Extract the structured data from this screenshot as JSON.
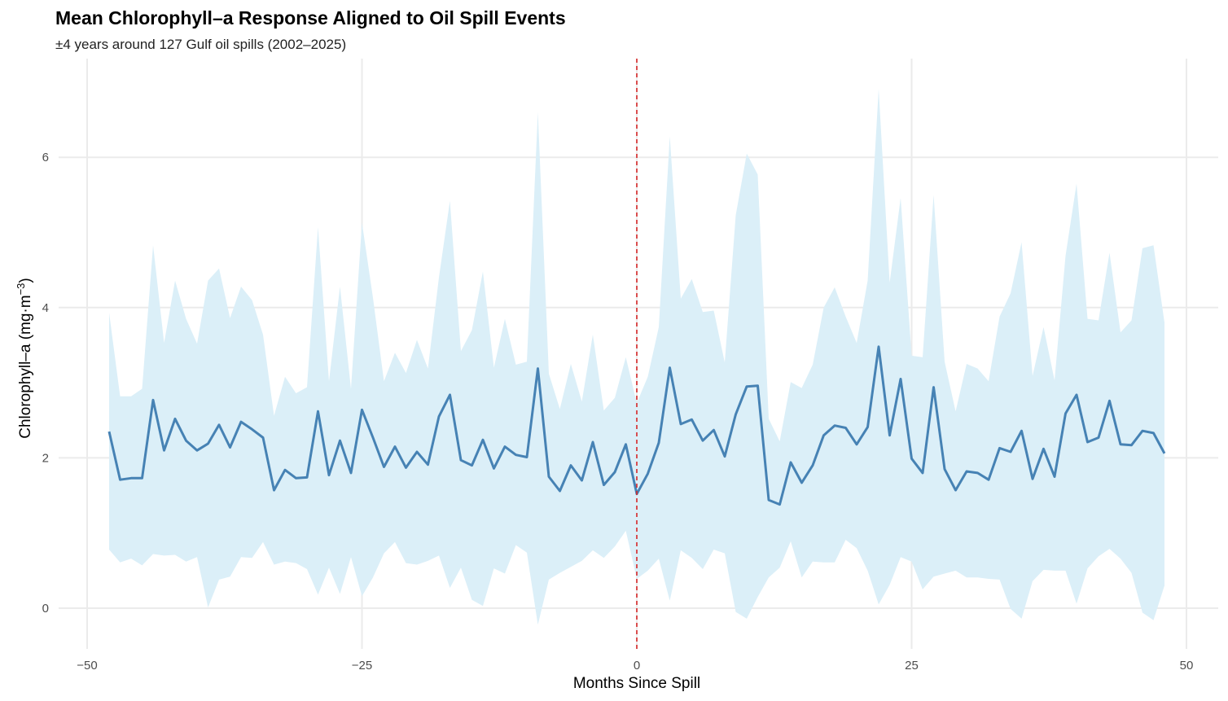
{
  "chart_data": {
    "type": "line",
    "title": "Mean Chlorophyll–a Response Aligned to Oil Spill Events",
    "subtitle": "±4 years around 127 Gulf oil spills (2002–2025)",
    "xlabel": "Months Since Spill",
    "ylabel_main": "Chlorophyll–a (mg·m",
    "ylabel_sup": "−3",
    "ylabel_close": ")",
    "xlim": [
      -50,
      50
    ],
    "ylim": [
      -0.5,
      7.3
    ],
    "x_ticks": [
      -50,
      -25,
      0,
      25,
      50
    ],
    "x_tick_labels": [
      "−50",
      "−25",
      "0",
      "25",
      "50"
    ],
    "y_ticks": [
      0,
      2,
      4,
      6
    ],
    "y_tick_labels": [
      "0",
      "2",
      "4",
      "6"
    ],
    "grid": true,
    "event_marker": {
      "x": 0,
      "style": "dashed",
      "color": "#d62728"
    },
    "colors": {
      "line": "#4682b4",
      "band": "#dbeff8",
      "grid": "#ebebeb",
      "event": "#d62728"
    },
    "x": [
      -48,
      -47,
      -46,
      -45,
      -44,
      -43,
      -42,
      -41,
      -40,
      -39,
      -38,
      -37,
      -36,
      -35,
      -34,
      -33,
      -32,
      -31,
      -30,
      -29,
      -28,
      -27,
      -26,
      -25,
      -24,
      -23,
      -22,
      -21,
      -20,
      -19,
      -18,
      -17,
      -16,
      -15,
      -14,
      -13,
      -12,
      -11,
      -10,
      -9,
      -8,
      -7,
      -6,
      -5,
      -4,
      -3,
      -2,
      -1,
      0,
      1,
      2,
      3,
      4,
      5,
      6,
      7,
      8,
      9,
      10,
      11,
      12,
      13,
      14,
      15,
      16,
      17,
      18,
      19,
      20,
      21,
      22,
      23,
      24,
      25,
      26,
      27,
      28,
      29,
      30,
      31,
      32,
      33,
      34,
      35,
      36,
      37,
      38,
      39,
      40,
      41,
      42,
      43,
      44,
      45,
      46,
      47,
      48
    ],
    "series": [
      {
        "values": [
          2.35,
          1.71,
          1.73,
          1.73,
          2.77,
          2.1,
          2.52,
          2.23,
          2.1,
          2.19,
          2.44,
          2.14,
          2.48,
          2.38,
          2.27,
          1.57,
          1.84,
          1.73,
          1.74,
          2.62,
          1.77,
          2.23,
          1.8,
          2.64,
          2.27,
          1.88,
          2.15,
          1.87,
          2.08,
          1.91,
          2.55,
          2.84,
          1.97,
          1.9,
          2.24,
          1.86,
          2.15,
          2.04,
          2.01,
          3.19,
          1.75,
          1.56,
          1.9,
          1.7,
          2.21,
          1.64,
          1.81,
          2.18,
          1.52,
          1.79,
          2.2,
          3.2,
          2.45,
          2.51,
          2.23,
          2.37,
          2.02,
          2.58,
          2.95,
          2.96,
          1.44,
          1.38,
          1.94,
          1.67,
          1.9,
          2.3,
          2.43,
          2.4,
          2.18,
          2.41,
          3.48,
          2.3,
          3.05,
          1.99,
          1.8,
          2.94,
          1.85,
          1.57,
          1.82,
          1.8,
          1.71,
          2.13,
          2.08,
          2.36,
          1.72,
          2.12,
          1.75,
          2.59,
          2.84,
          2.21,
          2.27,
          2.76,
          2.18,
          2.17,
          2.36,
          2.33,
          2.06
        ]
      }
    ],
    "band_upper": [
      3.93,
      2.82,
      2.82,
      2.92,
      4.83,
      3.53,
      4.36,
      3.85,
      3.52,
      4.36,
      4.52,
      3.86,
      4.28,
      4.1,
      3.64,
      2.56,
      3.08,
      2.86,
      2.94,
      5.07,
      3.02,
      4.28,
      2.92,
      5.13,
      4.13,
      3.02,
      3.4,
      3.13,
      3.57,
      3.19,
      4.4,
      5.42,
      3.42,
      3.7,
      4.48,
      3.2,
      3.85,
      3.24,
      3.28,
      6.6,
      3.12,
      2.65,
      3.25,
      2.75,
      3.64,
      2.63,
      2.8,
      3.34,
      2.73,
      3.08,
      3.74,
      6.28,
      4.12,
      4.38,
      3.94,
      3.96,
      3.27,
      5.23,
      6.05,
      5.77,
      2.52,
      2.22,
      3.01,
      2.93,
      3.24,
      4.0,
      4.27,
      3.88,
      3.53,
      4.36,
      6.91,
      4.33,
      5.46,
      3.36,
      3.34,
      5.5,
      3.28,
      2.62,
      3.25,
      3.19,
      3.02,
      3.88,
      4.19,
      4.87,
      3.09,
      3.74,
      3.03,
      4.69,
      5.65,
      3.85,
      3.83,
      4.73,
      3.67,
      3.83,
      4.79,
      4.83,
      3.8
    ],
    "band_lower": [
      0.78,
      0.61,
      0.66,
      0.57,
      0.72,
      0.7,
      0.71,
      0.62,
      0.68,
      0.01,
      0.38,
      0.42,
      0.68,
      0.67,
      0.88,
      0.58,
      0.62,
      0.6,
      0.52,
      0.18,
      0.54,
      0.19,
      0.68,
      0.16,
      0.41,
      0.73,
      0.88,
      0.6,
      0.58,
      0.63,
      0.7,
      0.27,
      0.54,
      0.11,
      0.03,
      0.53,
      0.46,
      0.84,
      0.74,
      -0.22,
      0.38,
      0.47,
      0.55,
      0.63,
      0.77,
      0.67,
      0.82,
      1.03,
      0.39,
      0.5,
      0.66,
      0.1,
      0.77,
      0.67,
      0.52,
      0.78,
      0.73,
      -0.05,
      -0.14,
      0.15,
      0.41,
      0.54,
      0.89,
      0.41,
      0.62,
      0.61,
      0.61,
      0.91,
      0.8,
      0.5,
      0.05,
      0.31,
      0.68,
      0.62,
      0.25,
      0.42,
      0.46,
      0.5,
      0.41,
      0.41,
      0.39,
      0.38,
      -0.01,
      -0.14,
      0.36,
      0.51,
      0.5,
      0.5,
      0.06,
      0.53,
      0.69,
      0.79,
      0.66,
      0.47,
      -0.06,
      -0.16,
      0.3
    ]
  }
}
